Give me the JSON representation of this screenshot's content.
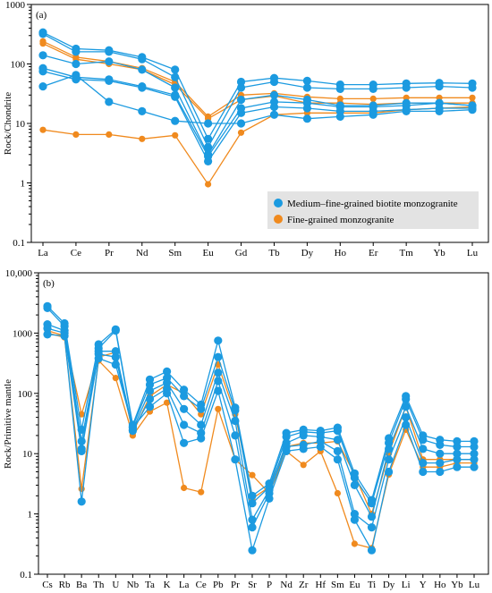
{
  "colors": {
    "medium": "#1b9ae0",
    "fine": "#f08a1e",
    "legend_bg": "#e3e3e3"
  },
  "legend": {
    "medium": "Medium–fine-grained biotite monzogranite",
    "fine": "Fine-grained  monzogranite"
  },
  "chart_data": [
    {
      "type": "line",
      "panel": "(a)",
      "ylabel": "Rock/Chondrite",
      "yscale": "log",
      "ylim": [
        0.1,
        1000
      ],
      "ytick_labels": [
        "0.1",
        "1",
        "10",
        "100",
        "1000"
      ],
      "categories": [
        "La",
        "Ce",
        "Pr",
        "Nd",
        "Sm",
        "Eu",
        "Gd",
        "Tb",
        "Dy",
        "Ho",
        "Er",
        "Tm",
        "Yb",
        "Lu"
      ],
      "groups": [
        {
          "key": "medium",
          "samples": [
            [
              340,
              180,
              170,
              130,
              80,
              5.5,
              50,
              58,
              52,
              45,
              45,
              47,
              48,
              47
            ],
            [
              320,
              160,
              160,
              120,
              60,
              4.0,
              40,
              50,
              40,
              38,
              38,
              40,
              42,
              40
            ],
            [
              140,
              100,
              110,
              80,
              40,
              3.0,
              25,
              30,
              25,
              20,
              20,
              22,
              22,
              20
            ],
            [
              85,
              60,
              55,
              42,
              30,
              2.8,
              18,
              23,
              22,
              19,
              19,
              20,
              22,
              20
            ],
            [
              75,
              55,
              52,
              40,
              28,
              2.3,
              15,
              19,
              18,
              16,
              16,
              17,
              18,
              18
            ],
            [
              42,
              65,
              23,
              16,
              11,
              10,
              10,
              14,
              12,
              13,
              14,
              16,
              16,
              17
            ]
          ]
        },
        {
          "key": "fine",
          "samples": [
            [
              240,
              130,
              110,
              85,
              50,
              13,
              30,
              32,
              28,
              26,
              26,
              27,
              27,
              27
            ],
            [
              220,
              120,
              100,
              80,
              45,
              12,
              25,
              29,
              22,
              22,
              21,
              22,
              22,
              22
            ],
            [
              7.8,
              6.5,
              6.5,
              5.5,
              6.3,
              0.95,
              7.0,
              14,
              15,
              15,
              15,
              17,
              18,
              19
            ]
          ]
        }
      ]
    },
    {
      "type": "line",
      "panel": "(b)",
      "ylabel": "Rock/Primitive mantle",
      "yscale": "log",
      "ylim": [
        0.1,
        10000
      ],
      "ytick_labels": [
        "0.1",
        "1",
        "10",
        "100",
        "1000",
        "10,000"
      ],
      "categories": [
        "Cs",
        "Rb",
        "Ba",
        "Th",
        "U",
        "Nb",
        "Ta",
        "K",
        "La",
        "Ce",
        "Pb",
        "Pr",
        "Sr",
        "P",
        "Nd",
        "Zr",
        "Hf",
        "Sm",
        "Eu",
        "Ti",
        "Dy",
        "Li",
        "Y",
        "Ho",
        "Yb",
        "Lu"
      ],
      "groups": [
        {
          "key": "medium",
          "samples": [
            [
              2800,
              1450,
              25,
              650,
              1150,
              30,
              170,
              230,
              115,
              65,
              750,
              58,
              2.0,
              3.2,
              22,
              25,
              24,
              27,
              4.7,
              1.7,
              18,
              90,
              20,
              17,
              16,
              16
            ],
            [
              2600,
              1300,
              16,
              560,
              1100,
              28,
              140,
              180,
              90,
              55,
              400,
              52,
              1.5,
              2.8,
              19,
              23,
              22,
              24,
              4.0,
              1.5,
              15,
              80,
              17,
              14,
              13,
              13
            ],
            [
              1400,
              1100,
              12,
              500,
              500,
              25,
              110,
              150,
              55,
              30,
              220,
              35,
              0.8,
              2.5,
              15,
              20,
              19,
              17,
              3.0,
              0.9,
              12,
              60,
              12,
              10,
              10,
              10
            ],
            [
              1200,
              1000,
              11,
              450,
              400,
              24,
              80,
              120,
              30,
              22,
              160,
              20,
              0.6,
              2.2,
              13,
              14,
              16,
              11,
              1.0,
              0.6,
              8,
              40,
              7,
              7,
              8,
              8
            ],
            [
              950,
              900,
              1.6,
              380,
              300,
              27,
              60,
              100,
              15,
              18,
              110,
              8,
              0.25,
              1.8,
              11,
              12,
              13,
              8,
              0.8,
              0.25,
              5,
              30,
              5,
              5,
              6,
              6
            ]
          ]
        },
        {
          "key": "fine",
          "samples": [
            [
              1100,
              900,
              45,
              400,
              480,
              22,
              90,
              140,
              100,
              45,
              300,
              45,
              1.8,
              2.8,
              13,
              15,
              15,
              16,
              4.5,
              1.0,
              10,
              60,
              8,
              8,
              8,
              8
            ],
            [
              1000,
              850,
              2.6,
              350,
              180,
              20,
              50,
              70,
              2.7,
              2.3,
              55,
              8,
              4.4,
              2.2,
              11,
              6.5,
              11,
              2.2,
              0.32,
              0.27,
              4.5,
              25,
              6,
              6,
              7,
              7
            ]
          ]
        }
      ]
    }
  ]
}
